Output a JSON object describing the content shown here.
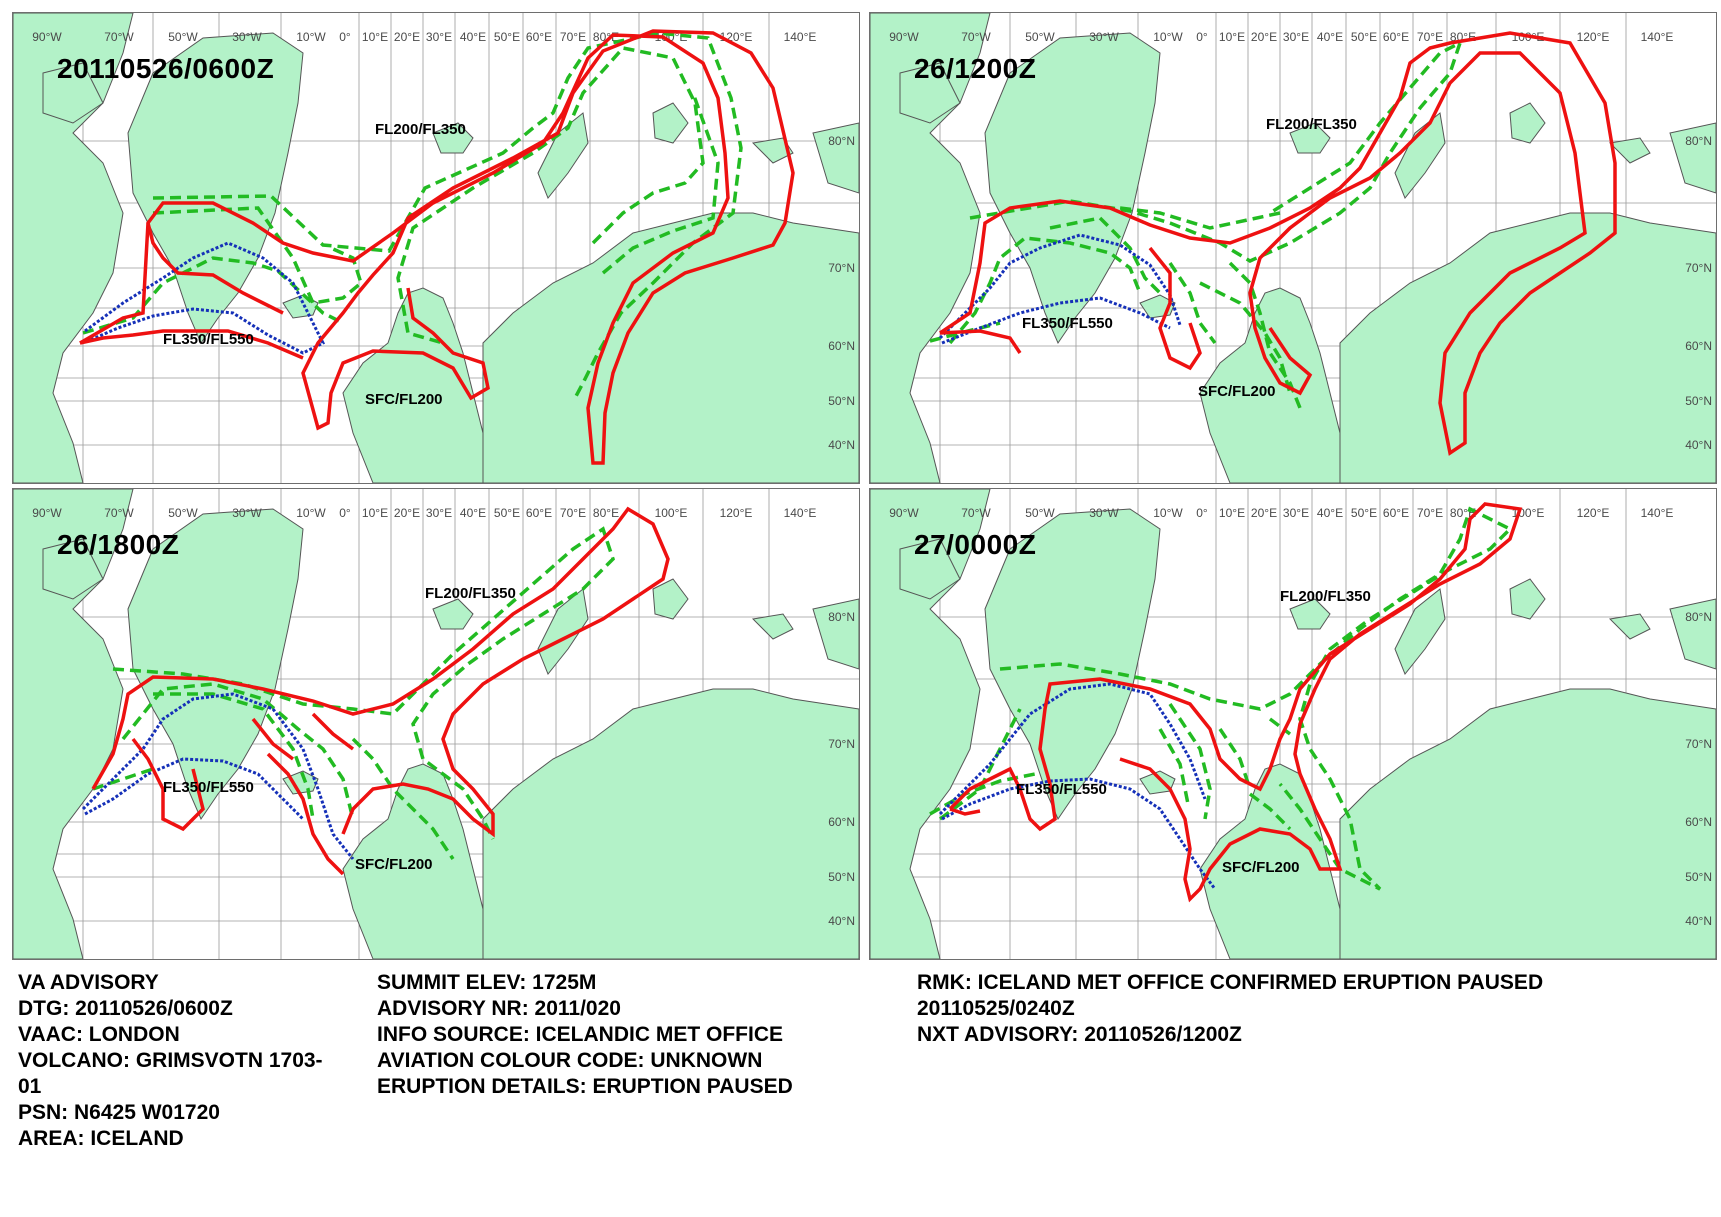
{
  "lon_labels": [
    "90°W",
    "70°W",
    "50°W",
    "30°W",
    "10°W",
    "0°",
    "10°E",
    "20°E",
    "30°E",
    "40°E",
    "50°E",
    "60°E",
    "70°E",
    "80°E",
    "100°E",
    "120°E",
    "140°E"
  ],
  "lat_labels": [
    "80°N",
    "70°N",
    "60°N",
    "50°N",
    "40°N"
  ],
  "colors": {
    "land": "#b3f2c8",
    "coast": "#555555",
    "fl350_550": "#1530b8",
    "fl200_350": "#22bb22",
    "sfc_fl200": "#ee1111"
  },
  "panels": [
    {
      "time": "20110526/0600Z",
      "level_labels": [
        "FL200/FL350",
        "FL350/FL550",
        "SFC/FL200"
      ]
    },
    {
      "time": "26/1200Z",
      "level_labels": [
        "FL200/FL350",
        "FL350/FL550",
        "SFC/FL200"
      ]
    },
    {
      "time": "26/1800Z",
      "level_labels": [
        "FL200/FL350",
        "FL350/FL550",
        "SFC/FL200"
      ]
    },
    {
      "time": "27/0000Z",
      "level_labels": [
        "FL200/FL350",
        "FL350/FL550",
        "SFC/FL200"
      ]
    }
  ],
  "advisory": {
    "col1": [
      "VA ADVISORY",
      "DTG:  20110526/0600Z",
      "VAAC:  LONDON",
      "VOLCANO:  GRIMSVOTN 1703-",
      "01",
      "PSN:  N6425 W01720",
      "AREA:  ICELAND"
    ],
    "col2": [
      "SUMMIT ELEV:  1725M",
      "ADVISORY NR:  2011/020",
      "INFO SOURCE:  ICELANDIC MET OFFICE",
      "AVIATION COLOUR CODE:  UNKNOWN",
      "ERUPTION DETAILS:  ERUPTION PAUSED"
    ],
    "col3": [
      "RMK:  ICELAND MET OFFICE CONFIRMED ERUPTION PAUSED",
      "20110525/0240Z",
      "NXT ADVISORY:  20110526/1200Z"
    ]
  }
}
